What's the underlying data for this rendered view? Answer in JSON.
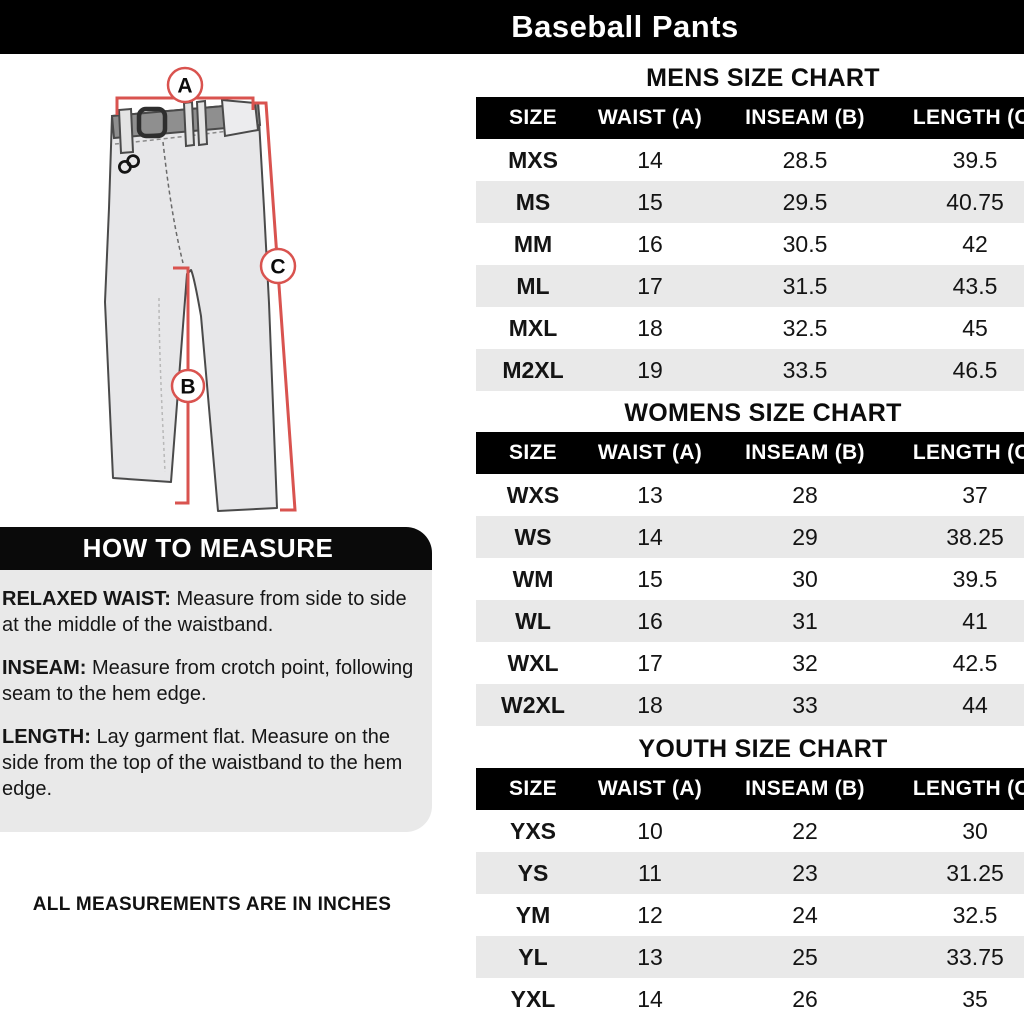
{
  "page": {
    "title": "Baseball Pants"
  },
  "diagram": {
    "measure_labels": {
      "a": "A",
      "b": "B",
      "c": "C"
    },
    "logo_icon": "infinity-logo",
    "accent_color": "#d9534f"
  },
  "how_to_measure": {
    "title": "HOW TO MEASURE",
    "items": [
      {
        "term": "RELAXED WAIST:",
        "text": "Measure from side to side at the middle of the waistband."
      },
      {
        "term": "INSEAM:",
        "text": "Measure from crotch point, following seam to the hem edge."
      },
      {
        "term": "LENGTH:",
        "text": "Lay garment flat. Measure on the side from the top of the waistband to the hem edge."
      }
    ]
  },
  "footnote": "ALL MEASUREMENTS ARE IN INCHES",
  "chart_data": [
    {
      "type": "table",
      "title": "MENS SIZE CHART",
      "columns": [
        "SIZE",
        "WAIST (A)",
        "INSEAM (B)",
        "LENGTH (C)"
      ],
      "rows": [
        [
          "MXS",
          14,
          28.5,
          39.5
        ],
        [
          "MS",
          15,
          29.5,
          40.75
        ],
        [
          "MM",
          16,
          30.5,
          42
        ],
        [
          "ML",
          17,
          31.5,
          43.5
        ],
        [
          "MXL",
          18,
          32.5,
          45
        ],
        [
          "M2XL",
          19,
          33.5,
          46.5
        ]
      ]
    },
    {
      "type": "table",
      "title": "WOMENS SIZE CHART",
      "columns": [
        "SIZE",
        "WAIST (A)",
        "INSEAM (B)",
        "LENGTH (C)"
      ],
      "rows": [
        [
          "WXS",
          13,
          28,
          37
        ],
        [
          "WS",
          14,
          29,
          38.25
        ],
        [
          "WM",
          15,
          30,
          39.5
        ],
        [
          "WL",
          16,
          31,
          41
        ],
        [
          "WXL",
          17,
          32,
          42.5
        ],
        [
          "W2XL",
          18,
          33,
          44
        ]
      ]
    },
    {
      "type": "table",
      "title": "YOUTH SIZE CHART",
      "columns": [
        "SIZE",
        "WAIST (A)",
        "INSEAM (B)",
        "LENGTH (C)"
      ],
      "rows": [
        [
          "YXS",
          10,
          22,
          30
        ],
        [
          "YS",
          11,
          23,
          31.25
        ],
        [
          "YM",
          12,
          24,
          32.5
        ],
        [
          "YL",
          13,
          25,
          33.75
        ],
        [
          "YXL",
          14,
          26,
          35
        ]
      ]
    }
  ],
  "colors": {
    "header_bg": "#000000",
    "header_text": "#ffffff",
    "row_alt": "#e9e9e9",
    "panel_bg": "#e9e9e9",
    "accent_red": "#d9534f",
    "pants_fill": "#e7e7e9",
    "belt_gray": "#8f8f8f"
  }
}
